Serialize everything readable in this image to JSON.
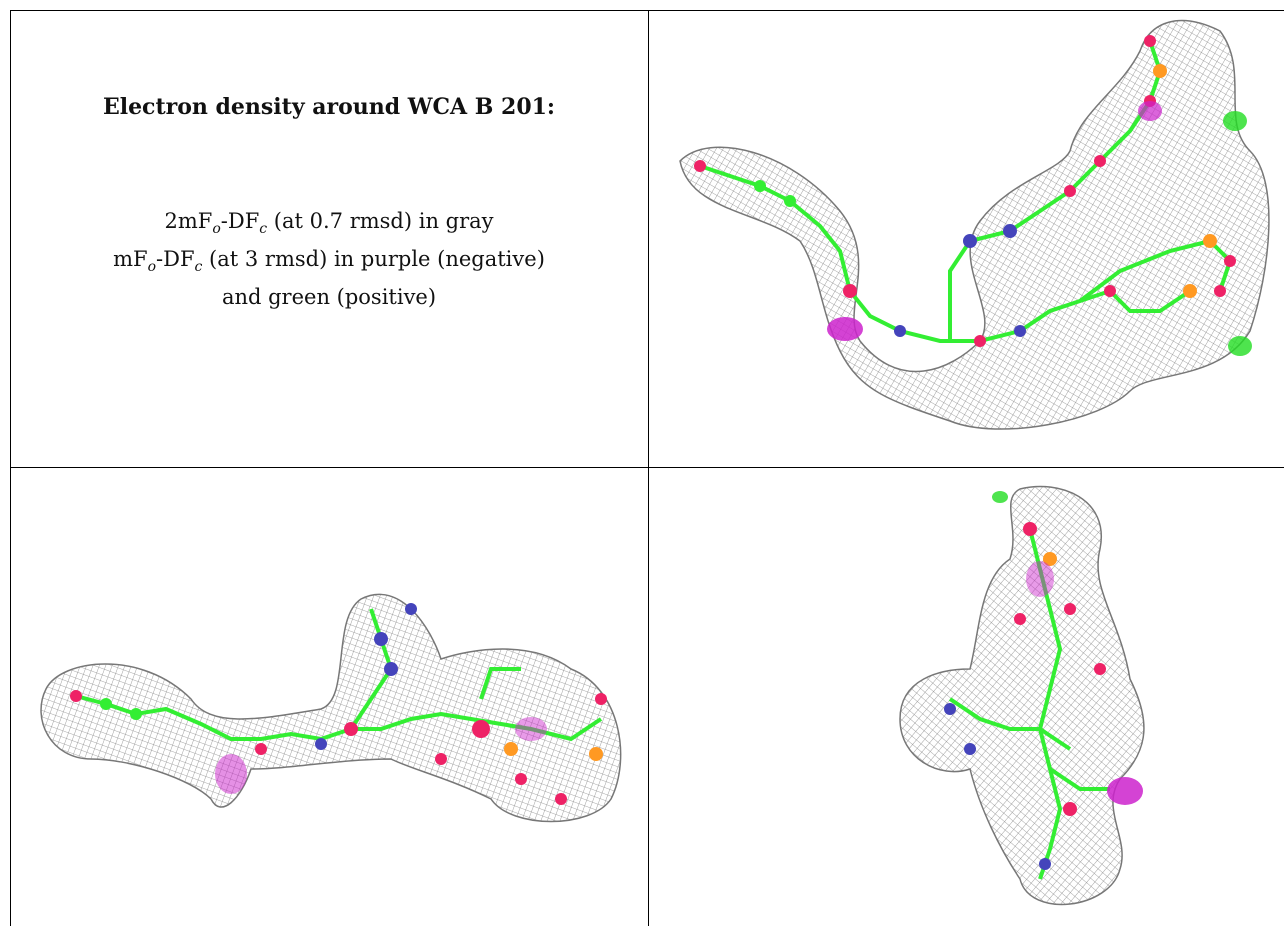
{
  "caption": {
    "title": "Electron density around WCA B 201:",
    "line1_a": "2mF",
    "line1_sub_o": "o",
    "line1_b": "-DF",
    "line1_sub_c": "c",
    "line1_rest": " (at 0.7 rmsd) in gray",
    "line2_a": "mF",
    "line2_sub_o": "o",
    "line2_b": "-DF",
    "line2_sub_c": "c",
    "line2_rest": " (at 3 rmsd) in purple (negative)",
    "line3": "and green (positive)"
  },
  "colors": {
    "mesh_gray": "#9a9a9a",
    "carbon_green": "#33ee33",
    "oxygen_red": "#ee2266",
    "nitrogen_blue": "#4444bb",
    "phosphorus_orange": "#ff9922",
    "negative_purple": "#cc22cc",
    "positive_green": "#22dd22"
  },
  "panels": [
    {
      "name": "density-view-top-right"
    },
    {
      "name": "density-view-bottom-left"
    },
    {
      "name": "density-view-bottom-right"
    }
  ]
}
